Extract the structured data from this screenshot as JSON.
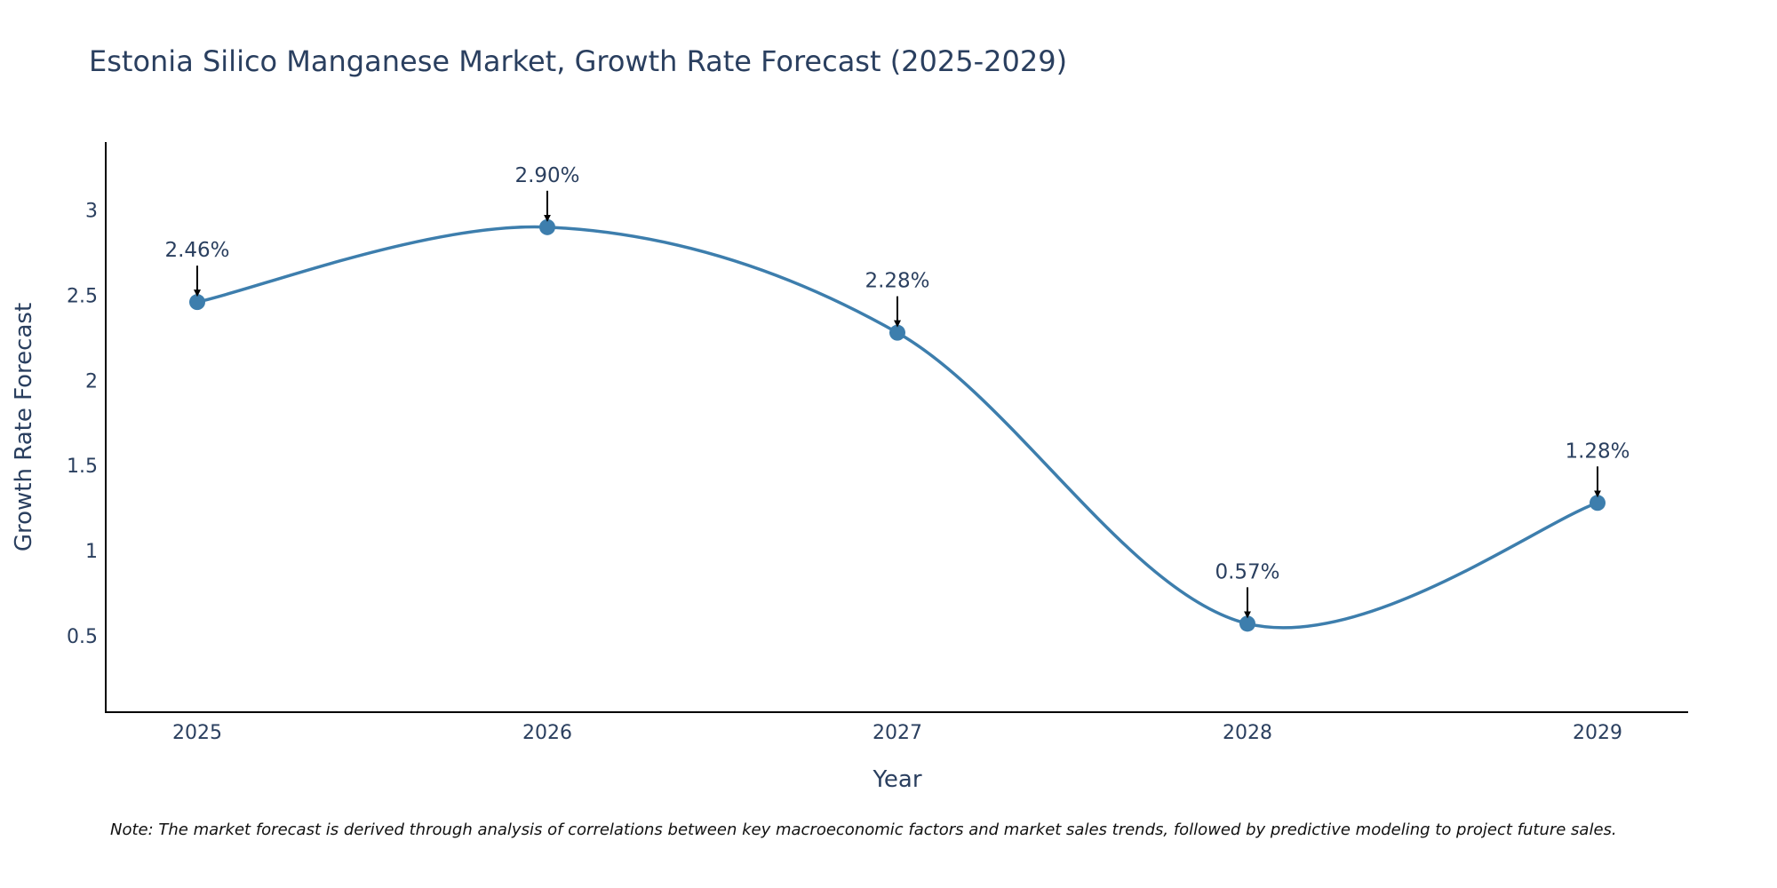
{
  "chart_data": {
    "type": "line",
    "title": "Estonia Silico Manganese Market, Growth Rate Forecast (2025-2029)",
    "xlabel": "Year",
    "ylabel": "Growth Rate Forecast",
    "categories": [
      "2025",
      "2026",
      "2027",
      "2028",
      "2029"
    ],
    "values": [
      2.46,
      2.9,
      2.28,
      0.57,
      1.28
    ],
    "labels": [
      "2.46%",
      "2.90%",
      "2.28%",
      "0.57%",
      "1.28%"
    ],
    "ylim": [
      0.05,
      3.4
    ],
    "yticks": [
      0.5,
      1,
      1.5,
      2,
      2.5,
      3
    ],
    "ytick_labels": [
      "0.5",
      "1",
      "1.5",
      "2",
      "2.5",
      "3"
    ],
    "line_color": "#3d7ead",
    "marker_color": "#3d7ead",
    "arrow_color": "#000000",
    "line_shape": "spline",
    "grid": false
  },
  "note": "Note: The market forecast is derived through analysis of correlations between key macroeconomic factors and market sales trends, followed by predictive modeling to project future sales."
}
